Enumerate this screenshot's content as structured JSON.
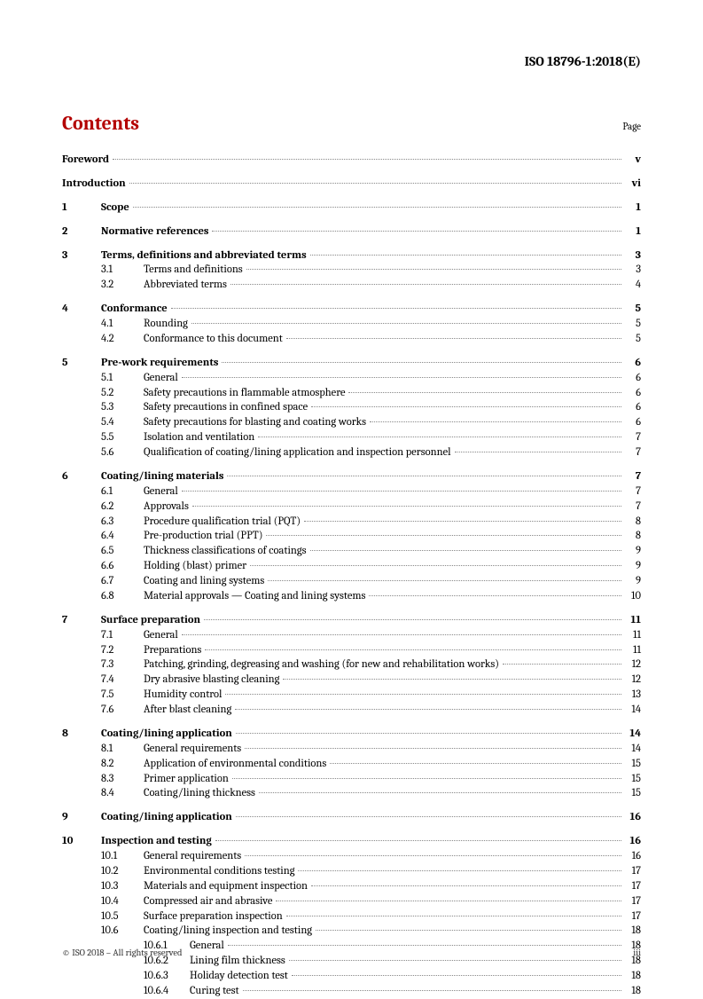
{
  "header": "ISO 18796-1:2018(E)",
  "contents_title": "Contents",
  "page_label": "Page",
  "footer_left": "© ISO 2018 – All rights reserved",
  "footer_right": "iii",
  "toc": [
    {
      "level": 0,
      "num": "",
      "label": "Foreword",
      "page": "v",
      "bold": true,
      "section": true,
      "first": true
    },
    {
      "level": 0,
      "num": "",
      "label": "Introduction",
      "page": "vi",
      "bold": true,
      "section": true
    },
    {
      "level": 0,
      "num": "1",
      "label": "Scope",
      "page": "1",
      "bold": true,
      "section": true
    },
    {
      "level": 0,
      "num": "2",
      "label": "Normative references",
      "page": "1",
      "bold": true,
      "section": true
    },
    {
      "level": 0,
      "num": "3",
      "label": "Terms, definitions and abbreviated terms",
      "page": "3",
      "bold": true,
      "section": true
    },
    {
      "level": 1,
      "num": "3.1",
      "label": "Terms and definitions",
      "page": "3"
    },
    {
      "level": 1,
      "num": "3.2",
      "label": "Abbreviated terms",
      "page": "4"
    },
    {
      "level": 0,
      "num": "4",
      "label": "Conformance",
      "page": "5",
      "bold": true,
      "section": true
    },
    {
      "level": 1,
      "num": "4.1",
      "label": "Rounding",
      "page": "5"
    },
    {
      "level": 1,
      "num": "4.2",
      "label": "Conformance to this document",
      "page": "5"
    },
    {
      "level": 0,
      "num": "5",
      "label": "Pre-work requirements",
      "page": "6",
      "bold": true,
      "section": true
    },
    {
      "level": 1,
      "num": "5.1",
      "label": "General",
      "page": "6"
    },
    {
      "level": 1,
      "num": "5.2",
      "label": "Safety precautions in flammable atmosphere",
      "page": "6"
    },
    {
      "level": 1,
      "num": "5.3",
      "label": "Safety precautions in confined space",
      "page": "6"
    },
    {
      "level": 1,
      "num": "5.4",
      "label": "Safety precautions for blasting and coating works",
      "page": "6"
    },
    {
      "level": 1,
      "num": "5.5",
      "label": "Isolation and ventilation",
      "page": "7"
    },
    {
      "level": 1,
      "num": "5.6",
      "label": "Qualification of coating/lining application and inspection personnel",
      "page": "7"
    },
    {
      "level": 0,
      "num": "6",
      "label": "Coating/lining materials",
      "page": "7",
      "bold": true,
      "section": true
    },
    {
      "level": 1,
      "num": "6.1",
      "label": "General",
      "page": "7"
    },
    {
      "level": 1,
      "num": "6.2",
      "label": "Approvals",
      "page": "7"
    },
    {
      "level": 1,
      "num": "6.3",
      "label": "Procedure qualification trial (PQT)",
      "page": "8"
    },
    {
      "level": 1,
      "num": "6.4",
      "label": "Pre-production trial (PPT)",
      "page": "8"
    },
    {
      "level": 1,
      "num": "6.5",
      "label": "Thickness classifications of coatings",
      "page": "9"
    },
    {
      "level": 1,
      "num": "6.6",
      "label": "Holding (blast) primer",
      "page": "9"
    },
    {
      "level": 1,
      "num": "6.7",
      "label": "Coating and lining systems",
      "page": "9"
    },
    {
      "level": 1,
      "num": "6.8",
      "label": "Material approvals — Coating and lining systems",
      "page": "10"
    },
    {
      "level": 0,
      "num": "7",
      "label": "Surface preparation",
      "page": "11",
      "bold": true,
      "section": true
    },
    {
      "level": 1,
      "num": "7.1",
      "label": "General",
      "page": "11"
    },
    {
      "level": 1,
      "num": "7.2",
      "label": "Preparations",
      "page": "11"
    },
    {
      "level": 1,
      "num": "7.3",
      "label": "Patching, grinding, degreasing and washing (for new and rehabilitation works)",
      "page": "12"
    },
    {
      "level": 1,
      "num": "7.4",
      "label": "Dry abrasive blasting cleaning",
      "page": "12"
    },
    {
      "level": 1,
      "num": "7.5",
      "label": "Humidity control",
      "page": "13"
    },
    {
      "level": 1,
      "num": "7.6",
      "label": "After blast cleaning",
      "page": "14"
    },
    {
      "level": 0,
      "num": "8",
      "label": "Coating/lining application",
      "page": "14",
      "bold": true,
      "section": true
    },
    {
      "level": 1,
      "num": "8.1",
      "label": "General requirements",
      "page": "14"
    },
    {
      "level": 1,
      "num": "8.2",
      "label": "Application of environmental conditions",
      "page": "15"
    },
    {
      "level": 1,
      "num": "8.3",
      "label": "Primer application",
      "page": "15"
    },
    {
      "level": 1,
      "num": "8.4",
      "label": "Coating/lining thickness",
      "page": "15"
    },
    {
      "level": 0,
      "num": "9",
      "label": "Coating/lining application",
      "page": "16",
      "bold": true,
      "section": true
    },
    {
      "level": 0,
      "num": "10",
      "label": "Inspection and testing",
      "page": "16",
      "bold": true,
      "section": true
    },
    {
      "level": 1,
      "num": "10.1",
      "label": "General requirements",
      "page": "16"
    },
    {
      "level": 1,
      "num": "10.2",
      "label": "Environmental conditions testing",
      "page": "17"
    },
    {
      "level": 1,
      "num": "10.3",
      "label": "Materials and equipment inspection",
      "page": "17"
    },
    {
      "level": 1,
      "num": "10.4",
      "label": "Compressed air and abrasive",
      "page": "17"
    },
    {
      "level": 1,
      "num": "10.5",
      "label": "Surface preparation inspection",
      "page": "17"
    },
    {
      "level": 1,
      "num": "10.6",
      "label": "Coating/lining inspection and testing",
      "page": "18"
    },
    {
      "level": 2,
      "num": "10.6.1",
      "label": "General",
      "page": "18"
    },
    {
      "level": 2,
      "num": "10.6.2",
      "label": "Lining film thickness",
      "page": "18"
    },
    {
      "level": 2,
      "num": "10.6.3",
      "label": "Holiday detection test",
      "page": "18"
    },
    {
      "level": 2,
      "num": "10.6.4",
      "label": "Curing test",
      "page": "18"
    }
  ]
}
